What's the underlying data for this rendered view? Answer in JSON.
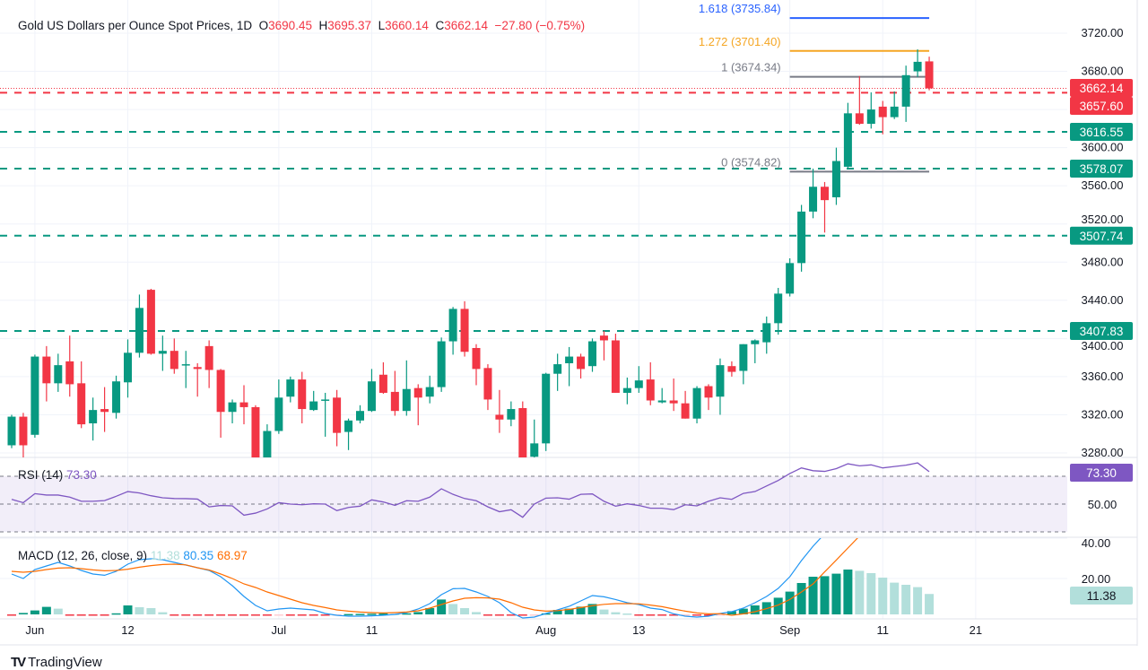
{
  "header": {
    "title": "Gold US Dollars per Ounce Spot Prices, 1D",
    "o_label": "O",
    "o": "3690.45",
    "h_label": "H",
    "h": "3695.37",
    "l_label": "L",
    "l": "3660.14",
    "c_label": "C",
    "c": "3662.14",
    "change": "−27.80 (−0.75%)"
  },
  "rsi_legend": {
    "name": "RSI (14)",
    "value": "73.30"
  },
  "macd_legend": {
    "name": "MACD (12, 26, close, 9)",
    "hist": "11.38",
    "macd": "80.35",
    "signal": "68.97"
  },
  "brand": {
    "name": "TradingView"
  },
  "colors": {
    "up": "#089981",
    "down": "#F23645",
    "rsi": "#7E57C2",
    "macd": "#2196F3",
    "signal": "#FF6D00",
    "hist_up_light": "#B2DFDB",
    "hist_down_light": "#FFCDD2",
    "fib_1618": "#2962FF",
    "fib_1272": "#F5A623",
    "fib_1": "#787B86",
    "fib_0": "#787B86"
  },
  "chart_data": {
    "type": "candlestick",
    "symbol": "Gold US Dollars per Ounce Spot Prices",
    "interval": "1D",
    "price_axis": {
      "range": [
        3270,
        3745
      ],
      "ticks": [
        "3720.00",
        "3680.00",
        "3600.00",
        "3560.00",
        "3520.00",
        "3480.00",
        "3440.00",
        "3400.00",
        "3360.00",
        "3320.00",
        "3280.00"
      ]
    },
    "x_ticks": [
      {
        "label": "Jun",
        "date": "2025-06-02"
      },
      {
        "label": "12",
        "date": "2025-06-12"
      },
      {
        "label": "Jul",
        "date": "2025-07-01"
      },
      {
        "label": "11",
        "date": "2025-07-11"
      },
      {
        "label": "Aug",
        "date": "2025-08-01"
      },
      {
        "label": "13",
        "date": "2025-08-13"
      },
      {
        "label": "Sep",
        "date": "2025-09-01"
      },
      {
        "label": "11",
        "date": "2025-09-11"
      },
      {
        "label": "21",
        "date": "2025-09-21"
      }
    ],
    "fields": [
      "date",
      "open",
      "high",
      "low",
      "close"
    ],
    "candles": [
      [
        "2025-05-29",
        3288,
        3320,
        3285,
        3318
      ],
      [
        "2025-05-30",
        3318,
        3322,
        3274,
        3288
      ],
      [
        "2025-06-02",
        3299,
        3383,
        3296,
        3381
      ],
      [
        "2025-06-03",
        3381,
        3392,
        3334,
        3353
      ],
      [
        "2025-06-04",
        3353,
        3384,
        3344,
        3372
      ],
      [
        "2025-06-05",
        3376,
        3403,
        3339,
        3352
      ],
      [
        "2025-06-06",
        3353,
        3376,
        3306,
        3310
      ],
      [
        "2025-06-09",
        3311,
        3338,
        3293,
        3325
      ],
      [
        "2025-06-10",
        3326,
        3349,
        3302,
        3323
      ],
      [
        "2025-06-11",
        3322,
        3361,
        3316,
        3355
      ],
      [
        "2025-06-12",
        3354,
        3399,
        3338,
        3385
      ],
      [
        "2025-06-13",
        3385,
        3446,
        3380,
        3432
      ],
      [
        "2025-06-16",
        3451,
        3452,
        3383,
        3384
      ],
      [
        "2025-06-17",
        3384,
        3403,
        3366,
        3387
      ],
      [
        "2025-06-18",
        3387,
        3400,
        3363,
        3368
      ],
      [
        "2025-06-19",
        3372,
        3387,
        3348,
        3373
      ],
      [
        "2025-06-20",
        3370,
        3374,
        3339,
        3368
      ],
      [
        "2025-06-23",
        3392,
        3398,
        3348,
        3367
      ],
      [
        "2025-06-24",
        3367,
        3368,
        3296,
        3323
      ],
      [
        "2025-06-25",
        3323,
        3336,
        3311,
        3333
      ],
      [
        "2025-06-26",
        3333,
        3351,
        3310,
        3328
      ],
      [
        "2025-06-27",
        3328,
        3330,
        3272,
        3274
      ],
      [
        "2025-06-30",
        3274,
        3310,
        3272,
        3303
      ],
      [
        "2025-07-01",
        3303,
        3357,
        3300,
        3338
      ],
      [
        "2025-07-02",
        3339,
        3360,
        3333,
        3357
      ],
      [
        "2025-07-03",
        3357,
        3365,
        3311,
        3326
      ],
      [
        "2025-07-04",
        3325,
        3345,
        3324,
        3334
      ],
      [
        "2025-07-07",
        3335,
        3343,
        3297,
        3336
      ],
      [
        "2025-07-08",
        3338,
        3346,
        3287,
        3301
      ],
      [
        "2025-07-09",
        3302,
        3316,
        3283,
        3314
      ],
      [
        "2025-07-10",
        3314,
        3330,
        3311,
        3324
      ],
      [
        "2025-07-11",
        3324,
        3368,
        3323,
        3355
      ],
      [
        "2025-07-14",
        3362,
        3375,
        3342,
        3343
      ],
      [
        "2025-07-15",
        3344,
        3366,
        3319,
        3324
      ],
      [
        "2025-07-16",
        3324,
        3377,
        3319,
        3347
      ],
      [
        "2025-07-17",
        3348,
        3352,
        3309,
        3338
      ],
      [
        "2025-07-18",
        3339,
        3361,
        3332,
        3349
      ],
      [
        "2025-07-21",
        3349,
        3401,
        3344,
        3397
      ],
      [
        "2025-07-22",
        3397,
        3433,
        3383,
        3431
      ],
      [
        "2025-07-23",
        3431,
        3439,
        3381,
        3386
      ],
      [
        "2025-07-24",
        3390,
        3394,
        3351,
        3368
      ],
      [
        "2025-07-25",
        3369,
        3373,
        3325,
        3336
      ],
      [
        "2025-07-28",
        3320,
        3346,
        3301,
        3315
      ],
      [
        "2025-07-29",
        3315,
        3334,
        3308,
        3326
      ],
      [
        "2025-07-30",
        3327,
        3334,
        3273,
        3274
      ],
      [
        "2025-07-31",
        3276,
        3315,
        3275,
        3290
      ],
      [
        "2025-08-01",
        3290,
        3364,
        3282,
        3363
      ],
      [
        "2025-08-04",
        3363,
        3384,
        3345,
        3373
      ],
      [
        "2025-08-05",
        3374,
        3391,
        3350,
        3381
      ],
      [
        "2025-08-06",
        3381,
        3384,
        3358,
        3368
      ],
      [
        "2025-08-07",
        3371,
        3400,
        3365,
        3397
      ],
      [
        "2025-08-08",
        3403,
        3408,
        3377,
        3398
      ],
      [
        "2025-08-11",
        3398,
        3405,
        3343,
        3343
      ],
      [
        "2025-08-12",
        3343,
        3359,
        3331,
        3348
      ],
      [
        "2025-08-13",
        3348,
        3371,
        3343,
        3356
      ],
      [
        "2025-08-14",
        3357,
        3375,
        3330,
        3335
      ],
      [
        "2025-08-15",
        3333,
        3348,
        3332,
        3335
      ],
      [
        "2025-08-18",
        3335,
        3358,
        3324,
        3332
      ],
      [
        "2025-08-19",
        3332,
        3345,
        3316,
        3316
      ],
      [
        "2025-08-20",
        3316,
        3350,
        3311,
        3348
      ],
      [
        "2025-08-21",
        3350,
        3352,
        3325,
        3338
      ],
      [
        "2025-08-22",
        3339,
        3379,
        3320,
        3372
      ],
      [
        "2025-08-25",
        3371,
        3376,
        3360,
        3365
      ],
      [
        "2025-08-26",
        3366,
        3394,
        3352,
        3394
      ],
      [
        "2025-08-27",
        3394,
        3399,
        3374,
        3398
      ],
      [
        "2025-08-28",
        3396,
        3423,
        3384,
        3416
      ],
      [
        "2025-08-29",
        3416,
        3453,
        3404,
        3447
      ],
      [
        "2025-09-01",
        3447,
        3484,
        3444,
        3479
      ],
      [
        "2025-09-02",
        3479,
        3540,
        3470,
        3533
      ],
      [
        "2025-09-03",
        3533,
        3578,
        3526,
        3559
      ],
      [
        "2025-09-04",
        3559,
        3564,
        3511,
        3545
      ],
      [
        "2025-09-05",
        3548,
        3600,
        3540,
        3586
      ],
      [
        "2025-09-08",
        3580,
        3647,
        3578,
        3636
      ],
      [
        "2025-09-09",
        3636,
        3675,
        3624,
        3625
      ],
      [
        "2025-09-10",
        3625,
        3658,
        3620,
        3640
      ],
      [
        "2025-09-11",
        3643,
        3649,
        3614,
        3632
      ],
      [
        "2025-09-12",
        3632,
        3659,
        3630,
        3643
      ],
      [
        "2025-09-15",
        3643,
        3686,
        3627,
        3676
      ],
      [
        "2025-09-16",
        3680,
        3703,
        3674,
        3690
      ],
      [
        "2025-09-17",
        3690.45,
        3695.37,
        3660.14,
        3662.14
      ]
    ],
    "current_price": {
      "value": 3662.14,
      "label": "3662.14"
    },
    "levels": [
      {
        "price": 3657.6,
        "label": "3657.60",
        "kind": "resistance",
        "color": "#F23645"
      },
      {
        "price": 3616.55,
        "label": "3616.55",
        "kind": "support",
        "color": "#089981"
      },
      {
        "price": 3578.07,
        "label": "3578.07",
        "kind": "support",
        "color": "#089981"
      },
      {
        "price": 3507.74,
        "label": "3507.74",
        "kind": "support",
        "color": "#089981"
      },
      {
        "price": 3407.83,
        "label": "3407.83",
        "kind": "support",
        "color": "#089981"
      }
    ],
    "fibonacci": {
      "start_date": "2025-09-01",
      "end_date": "2025-09-17",
      "levels": [
        {
          "ratio": "1.618",
          "price": 3735.84,
          "label": "1.618 (3735.84)",
          "color": "#2962FF"
        },
        {
          "ratio": "1.272",
          "price": 3701.4,
          "label": "1.272 (3701.40)",
          "color": "#F5A623"
        },
        {
          "ratio": "1",
          "price": 3674.34,
          "label": "1 (3674.34)",
          "color": "#787B86"
        },
        {
          "ratio": "0",
          "price": 3574.82,
          "label": "0 (3574.82)",
          "color": "#787B86"
        }
      ]
    },
    "rsi": {
      "period": 14,
      "range": [
        30,
        70
      ],
      "levels": [
        70,
        50,
        30
      ],
      "tick": "50.00",
      "last_label": "73.30",
      "values": [
        53.4,
        51,
        57.5,
        56.5,
        56.5,
        55,
        52,
        52,
        52.5,
        55.6,
        59,
        58,
        56,
        54.5,
        54,
        53.9,
        53.6,
        48,
        49,
        48.7,
        42,
        43.5,
        46.5,
        51,
        50,
        49.5,
        50.2,
        50,
        45.3,
        47.6,
        48.5,
        53,
        51.5,
        49.1,
        52.4,
        52,
        55,
        61,
        57,
        54,
        52.4,
        48,
        44.5,
        45.9,
        40.5,
        50,
        54.3,
        54.5,
        53.5,
        57,
        57.3,
        52,
        48.5,
        50.2,
        49,
        47,
        47,
        46,
        49.5,
        48.7,
        52,
        54.5,
        53.4,
        57.7,
        59,
        63,
        67,
        72,
        76,
        74,
        73.5,
        75.5,
        79,
        77.5,
        78.2,
        76,
        77,
        78,
        79.6,
        73.3
      ]
    },
    "macd": {
      "params": [
        12,
        26,
        9
      ],
      "ticks": [
        "40.00",
        "20.00"
      ],
      "last_label": "11.38",
      "macd": [
        22.5,
        20,
        25,
        27,
        29,
        27,
        24.5,
        22.5,
        21.8,
        24,
        28,
        30.5,
        31,
        30.5,
        29,
        27.5,
        26,
        24.5,
        21,
        16,
        10,
        5,
        2,
        3,
        3.5,
        3,
        2.5,
        0.5,
        -0.5,
        -1,
        -1,
        -0.8,
        -0.5,
        0,
        1,
        3,
        6,
        11,
        14.3,
        14.5,
        12.5,
        10,
        6.5,
        1,
        -2,
        -1.5,
        0.5,
        2.5,
        4.5,
        7.5,
        10.5,
        9.8,
        8.3,
        6.5,
        5.5,
        3.5,
        2.7,
        0.3,
        -1,
        -1.5,
        -1,
        0.5,
        1.5,
        3.5,
        6.5,
        10,
        14.5,
        21,
        30,
        38,
        45,
        53,
        62,
        68,
        72.5,
        75.5,
        77.5,
        79,
        80.5,
        80.35
      ],
      "signal": [
        24,
        23.5,
        24,
        25,
        25.8,
        26,
        25.5,
        24.8,
        24.3,
        24.5,
        25.2,
        26.3,
        27.2,
        27.8,
        28,
        27.6,
        26,
        24.8,
        22.5,
        20,
        17,
        15,
        12.5,
        10.5,
        8.5,
        6.5,
        5,
        3.8,
        2.5,
        1.8,
        1.3,
        1,
        0.8,
        1,
        1.3,
        2,
        3.5,
        5.5,
        7.5,
        9,
        9.3,
        9.2,
        8.5,
        6.5,
        4,
        2.5,
        1.8,
        2.1,
        2.8,
        3.8,
        4.8,
        5.6,
        6,
        6,
        5.9,
        5.2,
        4.3,
        3,
        1.8,
        0.8,
        0.3,
        0.4,
        -0.5,
        0.3,
        1.5,
        3.2,
        5.2,
        8.3,
        12.5,
        17,
        23.7,
        30.3,
        37,
        43.7,
        49.5,
        55,
        59.8,
        62.5,
        65.3,
        68.97
      ],
      "histogram": [
        -0.5,
        0.8,
        2.2,
        4.2,
        3.2,
        -0.5,
        -0.5,
        -0.5,
        -0.5,
        0.6,
        5,
        4,
        3.5,
        1.2,
        -0.5,
        -0.5,
        -0.5,
        -0.5,
        -0.5,
        -0.5,
        -0.5,
        -0.5,
        -0.5,
        -0.3,
        -0.3,
        -0.3,
        -0.3,
        -0.3,
        -0.2,
        0.2,
        0.3,
        0.4,
        0.5,
        0.3,
        0.6,
        1.3,
        3.5,
        8.3,
        5.8,
        3.5,
        1.3,
        -0.5,
        -0.5,
        -0.5,
        -0.5,
        -0.3,
        0.6,
        2.5,
        3.2,
        4.3,
        5.8,
        2.7,
        1.2,
        0.5,
        -0.5,
        -0.5,
        -0.5,
        -0.5,
        -0.3,
        -0.3,
        -0.3,
        -0.2,
        1.8,
        3.2,
        5,
        6.8,
        9.3,
        12.7,
        17.5,
        21,
        21.3,
        22.7,
        25,
        24.3,
        23,
        20.5,
        17.7,
        16.5,
        15.2,
        11.38
      ]
    }
  }
}
